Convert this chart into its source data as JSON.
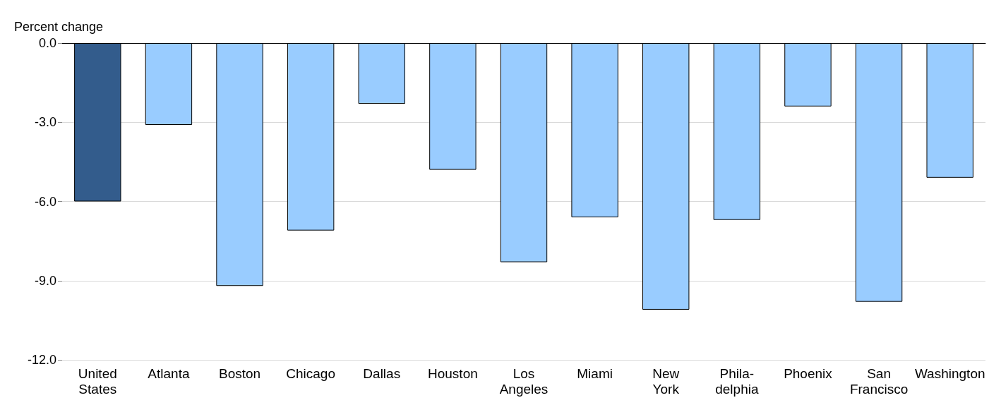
{
  "chart_data": {
    "type": "bar",
    "ylabel": "Percent change",
    "categories": [
      "United\nStates",
      "Atlanta",
      "Boston",
      "Chicago",
      "Dallas",
      "Houston",
      "Los\nAngeles",
      "Miami",
      "New\nYork",
      "Phila-\ndelphia",
      "Phoenix",
      "San\nFrancisco",
      "Washington"
    ],
    "values": [
      -6.0,
      -3.1,
      -9.2,
      -7.1,
      -2.3,
      -4.8,
      -8.3,
      -6.6,
      -10.1,
      -6.7,
      -2.4,
      -9.8,
      -5.1
    ],
    "colors": [
      "#335c8c",
      "#99ccff",
      "#99ccff",
      "#99ccff",
      "#99ccff",
      "#99ccff",
      "#99ccff",
      "#99ccff",
      "#99ccff",
      "#99ccff",
      "#99ccff",
      "#99ccff",
      "#99ccff"
    ],
    "ylim": [
      -12,
      0
    ],
    "yticks": [
      {
        "value": -12,
        "label": "-12.0"
      },
      {
        "value": -9,
        "label": "-9.0"
      },
      {
        "value": -6,
        "label": "-6.0"
      },
      {
        "value": -3,
        "label": "-3.0"
      },
      {
        "value": 0,
        "label": "0.0"
      }
    ],
    "grid": "y"
  }
}
